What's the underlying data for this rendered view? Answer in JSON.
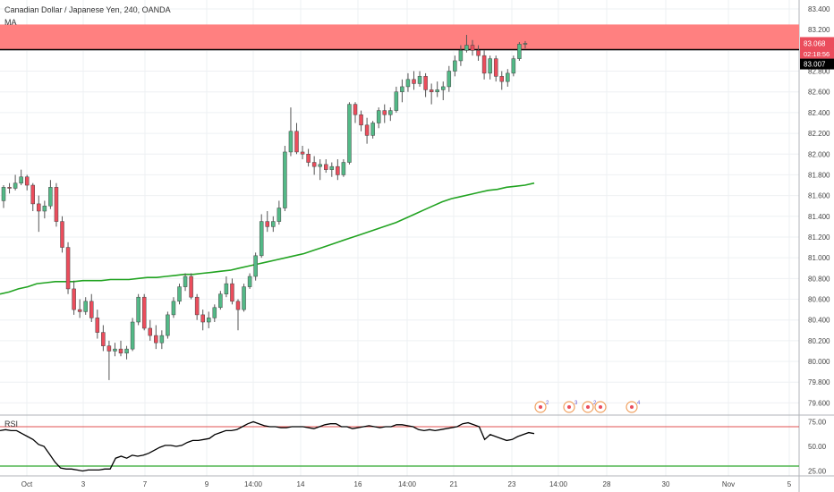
{
  "header": {
    "title": "Canadian Dollar / Japanese Yen, 240, OANDA",
    "ma_label": "MA",
    "rsi_label": "RSI"
  },
  "colors": {
    "up": "#53b987",
    "down": "#eb4d5c",
    "ma": "#21a321",
    "zone": "#ff8080",
    "rsi_line": "#000000",
    "rsi_upper": "#e05050",
    "rsi_lower": "#2fa82f",
    "price_tag": "#eb4d5c",
    "axis_tag": "#000000"
  },
  "price_tags": {
    "current": "83.068",
    "countdown": "02:18:56",
    "level": "83.007"
  },
  "events": [
    {
      "icon": "event-icon",
      "count": "2"
    },
    {
      "icon": "event-icon",
      "count": "3"
    },
    {
      "icon": "event-icon",
      "count": "2"
    },
    {
      "icon": "event-icon",
      "count": ""
    },
    {
      "icon": "event-icon",
      "count": "4"
    }
  ],
  "chart_data": [
    {
      "type": "candlestick",
      "title": "Canadian Dollar / Japanese Yen, 240, OANDA",
      "ylim": [
        79.5,
        83.4
      ],
      "y_ticks": [
        "83.400",
        "83.200",
        "83.000",
        "82.800",
        "82.600",
        "82.400",
        "82.200",
        "82.000",
        "81.800",
        "81.600",
        "81.400",
        "81.200",
        "81.000",
        "80.800",
        "80.600",
        "80.400",
        "80.200",
        "80.000",
        "79.800",
        "79.600"
      ],
      "x_ticks": [
        "Oct",
        "3",
        "7",
        "9",
        "14:00",
        "14",
        "16",
        "14:00",
        "21",
        "23",
        "14:00",
        "28",
        "30",
        "Nov",
        "5"
      ],
      "resistance_zone": [
        83.007,
        83.25
      ],
      "horizontal_line": 83.007,
      "candles": [
        [
          81.55,
          81.7,
          81.48,
          81.68
        ],
        [
          81.68,
          81.72,
          81.62,
          81.67
        ],
        [
          81.67,
          81.8,
          81.65,
          81.72
        ],
        [
          81.72,
          81.85,
          81.7,
          81.78
        ],
        [
          81.78,
          81.8,
          81.65,
          81.7
        ],
        [
          81.7,
          81.72,
          81.45,
          81.52
        ],
        [
          81.52,
          81.6,
          81.25,
          81.45
        ],
        [
          81.45,
          81.55,
          81.38,
          81.5
        ],
        [
          81.5,
          81.75,
          81.47,
          81.68
        ],
        [
          81.68,
          81.72,
          81.3,
          81.35
        ],
        [
          81.35,
          81.4,
          81.05,
          81.1
        ],
        [
          81.1,
          81.15,
          80.65,
          80.7
        ],
        [
          80.7,
          80.78,
          80.45,
          80.5
        ],
        [
          80.5,
          80.6,
          80.42,
          80.48
        ],
        [
          80.48,
          80.62,
          80.45,
          80.58
        ],
        [
          80.58,
          80.65,
          80.38,
          80.42
        ],
        [
          80.42,
          80.5,
          80.22,
          80.28
        ],
        [
          80.28,
          80.35,
          80.1,
          80.15
        ],
        [
          80.15,
          80.2,
          79.82,
          80.1
        ],
        [
          80.1,
          80.18,
          80.05,
          80.12
        ],
        [
          80.12,
          80.2,
          80.05,
          80.08
        ],
        [
          80.08,
          80.15,
          80.02,
          80.12
        ],
        [
          80.12,
          80.42,
          80.1,
          80.38
        ],
        [
          80.38,
          80.65,
          80.35,
          80.62
        ],
        [
          80.62,
          80.65,
          80.3,
          80.32
        ],
        [
          80.32,
          80.4,
          80.2,
          80.25
        ],
        [
          80.25,
          80.35,
          80.12,
          80.18
        ],
        [
          80.18,
          80.3,
          80.12,
          80.25
        ],
        [
          80.25,
          80.48,
          80.22,
          80.45
        ],
        [
          80.45,
          80.62,
          80.42,
          80.58
        ],
        [
          80.58,
          80.75,
          80.55,
          80.72
        ],
        [
          80.72,
          80.85,
          80.68,
          80.82
        ],
        [
          80.82,
          80.85,
          80.6,
          80.62
        ],
        [
          80.62,
          80.65,
          80.4,
          80.45
        ],
        [
          80.45,
          80.5,
          80.3,
          80.38
        ],
        [
          80.38,
          80.48,
          80.32,
          80.42
        ],
        [
          80.42,
          80.55,
          80.38,
          80.52
        ],
        [
          80.52,
          80.68,
          80.5,
          80.65
        ],
        [
          80.65,
          80.82,
          80.62,
          80.75
        ],
        [
          80.75,
          80.8,
          80.55,
          80.58
        ],
        [
          80.58,
          80.6,
          80.3,
          80.5
        ],
        [
          80.5,
          80.75,
          80.48,
          80.72
        ],
        [
          80.72,
          80.85,
          80.7,
          80.82
        ],
        [
          80.82,
          81.05,
          80.78,
          81.02
        ],
        [
          81.02,
          81.42,
          81.0,
          81.35
        ],
        [
          81.35,
          81.45,
          81.25,
          81.3
        ],
        [
          81.3,
          81.4,
          81.25,
          81.35
        ],
        [
          81.35,
          81.55,
          81.32,
          81.48
        ],
        [
          81.48,
          82.08,
          81.45,
          82.02
        ],
        [
          82.02,
          82.45,
          81.98,
          82.22
        ],
        [
          82.22,
          82.3,
          82.0,
          82.02
        ],
        [
          82.02,
          82.08,
          81.95,
          82.0
        ],
        [
          82.0,
          82.05,
          81.88,
          81.92
        ],
        [
          81.92,
          81.98,
          81.8,
          81.88
        ],
        [
          81.88,
          81.95,
          81.75,
          81.9
        ],
        [
          81.9,
          81.95,
          81.82,
          81.85
        ],
        [
          81.85,
          81.92,
          81.78,
          81.88
        ],
        [
          81.88,
          81.95,
          81.75,
          81.8
        ],
        [
          81.8,
          81.95,
          81.78,
          81.92
        ],
        [
          81.92,
          82.5,
          81.9,
          82.48
        ],
        [
          82.48,
          82.5,
          82.3,
          82.38
        ],
        [
          82.38,
          82.42,
          82.22,
          82.28
        ],
        [
          82.28,
          82.35,
          82.1,
          82.18
        ],
        [
          82.18,
          82.32,
          82.15,
          82.3
        ],
        [
          82.3,
          82.45,
          82.25,
          82.42
        ],
        [
          82.42,
          82.48,
          82.3,
          82.38
        ],
        [
          82.38,
          82.45,
          82.32,
          82.42
        ],
        [
          82.42,
          82.65,
          82.4,
          82.6
        ],
        [
          82.6,
          82.72,
          82.5,
          82.65
        ],
        [
          82.65,
          82.78,
          82.6,
          82.72
        ],
        [
          82.72,
          82.8,
          82.62,
          82.68
        ],
        [
          82.68,
          82.8,
          82.65,
          82.75
        ],
        [
          82.75,
          82.78,
          82.55,
          82.62
        ],
        [
          82.62,
          82.68,
          82.48,
          82.6
        ],
        [
          82.6,
          82.7,
          82.55,
          82.62
        ],
        [
          82.62,
          82.7,
          82.52,
          82.65
        ],
        [
          82.65,
          82.85,
          82.6,
          82.8
        ],
        [
          82.8,
          82.95,
          82.75,
          82.9
        ],
        [
          82.9,
          83.05,
          82.85,
          83.0
        ],
        [
          83.0,
          83.15,
          82.98,
          83.05
        ],
        [
          83.05,
          83.1,
          82.95,
          83.0
        ],
        [
          83.0,
          83.05,
          82.9,
          82.95
        ],
        [
          82.95,
          83.0,
          82.72,
          82.78
        ],
        [
          82.78,
          82.95,
          82.72,
          82.92
        ],
        [
          82.92,
          82.95,
          82.7,
          82.75
        ],
        [
          82.75,
          82.8,
          82.62,
          82.7
        ],
        [
          82.7,
          82.82,
          82.65,
          82.78
        ],
        [
          82.78,
          82.95,
          82.75,
          82.92
        ],
        [
          82.92,
          83.08,
          82.9,
          83.06
        ],
        [
          83.06,
          83.09,
          83.02,
          83.068
        ]
      ],
      "series": [
        {
          "name": "MA",
          "values": [
            80.65,
            80.67,
            80.7,
            80.72,
            80.75,
            80.76,
            80.77,
            80.77,
            80.77,
            80.78,
            80.78,
            80.78,
            80.79,
            80.79,
            80.79,
            80.8,
            80.81,
            80.81,
            80.82,
            80.83,
            80.84,
            80.84,
            80.85,
            80.86,
            80.87,
            80.88,
            80.9,
            80.92,
            80.94,
            80.96,
            80.98,
            81.0,
            81.02,
            81.04,
            81.07,
            81.1,
            81.13,
            81.16,
            81.19,
            81.22,
            81.25,
            81.28,
            81.31,
            81.34,
            81.38,
            81.42,
            81.46,
            81.5,
            81.54,
            81.57,
            81.59,
            81.61,
            81.63,
            81.65,
            81.66,
            81.68,
            81.69,
            81.7,
            81.72
          ]
        }
      ]
    },
    {
      "type": "line",
      "title": "RSI",
      "ylim": [
        20,
        80
      ],
      "y_ticks": [
        "75.00",
        "50.00",
        "25.00"
      ],
      "levels": [
        70,
        30
      ],
      "series": [
        {
          "name": "RSI",
          "values": [
            66,
            67,
            66,
            66,
            63,
            60,
            57,
            52,
            50,
            42,
            34,
            28,
            27,
            27,
            26,
            25,
            26,
            26,
            26,
            27,
            27,
            38,
            40,
            38,
            41,
            40,
            41,
            43,
            46,
            49,
            51,
            51,
            50,
            51,
            54,
            56,
            56,
            57,
            58,
            62,
            64,
            66,
            66,
            67,
            70,
            73,
            75,
            73,
            71,
            70,
            70,
            69,
            69,
            70,
            70,
            70,
            69,
            68,
            70,
            72,
            73,
            73,
            70,
            70,
            68,
            69,
            70,
            71,
            70,
            69,
            70,
            70,
            72,
            72,
            71,
            70,
            67,
            66,
            67,
            66,
            67,
            68,
            69,
            70,
            73,
            74,
            72,
            70,
            57,
            62,
            60,
            58,
            56,
            57,
            60,
            62,
            64,
            63
          ]
        }
      ]
    }
  ]
}
